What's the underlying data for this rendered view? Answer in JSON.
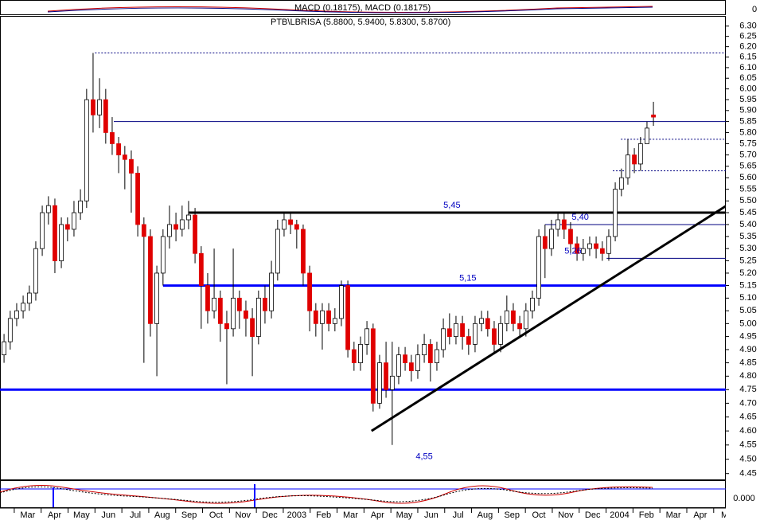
{
  "chart_data": {
    "type": "candlestick",
    "title": "PTB\\LBRISA (5.8800, 5.9400, 5.8300, 5.8700)",
    "indicator_label": "MACD (0.18175), MACD (0.18175)",
    "indicator_zero": "0",
    "lower_label": "0.000",
    "log_scale": true,
    "up_color": "#ffffff",
    "down_color": "#e00000",
    "ylim": [
      4.43,
      6.35
    ],
    "yticks": [
      {
        "value": 6.3,
        "label": "6.30"
      },
      6.25,
      {
        "value": 6.2,
        "label": "6.20"
      },
      6.15,
      {
        "value": 6.1,
        "label": "6.10"
      },
      6.05,
      {
        "value": 6,
        "label": "6.00"
      },
      5.95,
      {
        "value": 5.9,
        "label": "5.90"
      },
      5.85,
      {
        "value": 5.8,
        "label": "5.80"
      },
      5.75,
      {
        "value": 5.7,
        "label": "5.70"
      },
      5.65,
      {
        "value": 5.6,
        "label": "5.60"
      },
      5.55,
      {
        "value": 5.5,
        "label": "5.50"
      },
      5.45,
      {
        "value": 5.4,
        "label": "5.40"
      },
      5.35,
      {
        "value": 5.3,
        "label": "5.30"
      },
      5.25,
      {
        "value": 5.2,
        "label": "5.20"
      },
      5.15,
      {
        "value": 5.1,
        "label": "5.10"
      },
      5.05,
      {
        "value": 5,
        "label": "5.00"
      },
      4.95,
      {
        "value": 4.9,
        "label": "4.90"
      },
      4.85,
      {
        "value": 4.8,
        "label": "4.80"
      },
      4.75,
      {
        "value": 4.7,
        "label": "4.70"
      },
      4.65,
      {
        "value": 4.6,
        "label": "4.60"
      },
      4.55,
      {
        "value": 4.5,
        "label": "4.50"
      },
      4.45
    ],
    "xlim": [
      -0.53,
      26.45
    ],
    "xticks": [
      {
        "value": 0,
        "label": "Mar"
      },
      {
        "value": 1,
        "label": "Apr"
      },
      {
        "value": 2,
        "label": "May"
      },
      {
        "value": 3,
        "label": "Jun"
      },
      {
        "value": 4,
        "label": "Jul"
      },
      {
        "value": 5,
        "label": "Aug"
      },
      {
        "value": 6,
        "label": "Sep"
      },
      {
        "value": 7,
        "label": "Oct"
      },
      {
        "value": 8,
        "label": "Nov"
      },
      {
        "value": 9,
        "label": "Dec"
      },
      {
        "value": 10,
        "label": "2003"
      },
      {
        "value": 11,
        "label": "Feb"
      },
      {
        "value": 12,
        "label": "Mar"
      },
      {
        "value": 13,
        "label": "Apr"
      },
      {
        "value": 14,
        "label": "May"
      },
      {
        "value": 15,
        "label": "Jun"
      },
      {
        "value": 16,
        "label": "Jul"
      },
      {
        "value": 17,
        "label": "Aug"
      },
      {
        "value": 18,
        "label": "Sep"
      },
      {
        "value": 19,
        "label": "Oct"
      },
      {
        "value": 20,
        "label": "Nov"
      },
      {
        "value": 21,
        "label": "Dec"
      },
      {
        "value": 22,
        "label": "2004"
      },
      {
        "value": 23,
        "label": "Feb"
      },
      {
        "value": 24,
        "label": "Mar"
      },
      {
        "value": 25,
        "label": "Apr"
      },
      {
        "value": 26,
        "label": "Ma"
      }
    ],
    "x": [
      -0.38,
      -0.15,
      0.09,
      0.33,
      0.56,
      0.8,
      1.04,
      1.27,
      1.51,
      1.75,
      1.98,
      2.22,
      2.46,
      2.69,
      2.93,
      3.17,
      3.4,
      3.64,
      3.88,
      4.11,
      4.35,
      4.59,
      4.82,
      5.06,
      5.3,
      5.53,
      5.77,
      6.01,
      6.24,
      6.48,
      6.72,
      6.95,
      7.19,
      7.43,
      7.66,
      7.9,
      8.14,
      8.37,
      8.61,
      8.85,
      9.08,
      9.32,
      9.56,
      9.79,
      10.03,
      10.27,
      10.5,
      10.74,
      10.98,
      11.21,
      11.45,
      11.69,
      11.92,
      12.16,
      12.4,
      12.63,
      12.87,
      13.11,
      13.34,
      13.58,
      13.82,
      14.05,
      14.29,
      14.53,
      14.76,
      15,
      15.24,
      15.47,
      15.71,
      15.95,
      16.18,
      16.42,
      16.66,
      16.89,
      17.13,
      17.37,
      17.6,
      17.84,
      18.08,
      18.31,
      18.55,
      18.79,
      19.02,
      19.26,
      19.5,
      19.73,
      19.97,
      20.21,
      20.44,
      20.68,
      20.92,
      21.15,
      21.39,
      21.63,
      21.86,
      22.1,
      22.34,
      22.57,
      22.81,
      23.05,
      23.28,
      23.52,
      23.76
    ],
    "open": [
      4.88,
      4.93,
      5.02,
      5.05,
      5.08,
      5.12,
      5.3,
      5.45,
      5.48,
      5.25,
      5.4,
      5.38,
      5.45,
      5.5,
      5.95,
      5.88,
      5.95,
      5.8,
      5.75,
      5.7,
      5.68,
      5.62,
      5.4,
      5.35,
      5,
      5.2,
      5.35,
      5.4,
      5.38,
      5.42,
      5.44,
      5.28,
      5.15,
      5.05,
      5.1,
      5,
      4.98,
      5.1,
      5.05,
      5.02,
      4.95,
      5.1,
      5.05,
      5.2,
      5.38,
      5.42,
      5.4,
      5.38,
      5.2,
      5.05,
      5,
      5.05,
      5,
      5.02,
      5.15,
      4.9,
      4.85,
      4.92,
      4.98,
      4.7,
      4.85,
      4.75,
      4.8,
      4.88,
      4.85,
      4.82,
      4.88,
      4.92,
      4.85,
      4.9,
      4.98,
      4.95,
      5,
      4.95,
      4.92,
      5,
      5.02,
      4.98,
      4.92,
      5,
      5.05,
      5,
      4.98,
      5.05,
      5.1,
      5.35,
      5.3,
      5.38,
      5.42,
      5.38,
      5.32,
      5.28,
      5.3,
      5.32,
      5.3,
      5.28,
      5.35,
      5.55,
      5.6,
      5.7,
      5.66,
      5.75,
      5.88
    ],
    "high": [
      4.96,
      5.05,
      5.08,
      5.11,
      5.15,
      5.33,
      5.48,
      5.52,
      5.51,
      5.43,
      5.43,
      5.5,
      5.55,
      6,
      6.17,
      6.05,
      6,
      5.87,
      5.78,
      5.74,
      5.72,
      5.65,
      5.43,
      5.38,
      5.23,
      5.38,
      5.48,
      5.45,
      5.48,
      5.5,
      5.47,
      5.31,
      5.2,
      5.3,
      5.13,
      5.05,
      5.3,
      5.13,
      5.09,
      5.06,
      5.13,
      5.15,
      5.25,
      5.42,
      5.45,
      5.45,
      5.42,
      5.4,
      5.23,
      5.08,
      5.08,
      5.08,
      5.06,
      5.17,
      5.17,
      4.93,
      4.95,
      5.01,
      5,
      4.88,
      4.93,
      4.93,
      4.91,
      4.91,
      4.88,
      4.92,
      4.96,
      4.94,
      4.93,
      5.02,
      5.04,
      5.03,
      5.03,
      4.98,
      5.03,
      5.05,
      5.05,
      5.01,
      5.03,
      5.11,
      5.08,
      5.03,
      5.08,
      5.13,
      5.38,
      5.4,
      5.42,
      5.45,
      5.45,
      5.41,
      5.35,
      5.34,
      5.35,
      5.35,
      5.33,
      5.38,
      5.58,
      5.64,
      5.77,
      5.73,
      5.78,
      5.85,
      5.94
    ],
    "low": [
      4.85,
      4.9,
      4.99,
      5.02,
      5.05,
      5.09,
      5.27,
      5.4,
      5.2,
      5.22,
      5.33,
      5.35,
      5.42,
      5.47,
      5.8,
      5.82,
      5.75,
      5.7,
      5.62,
      5.55,
      5.45,
      5.35,
      4.85,
      4.95,
      4.8,
      5.15,
      5.3,
      5.33,
      5.35,
      5.38,
      5.24,
      4.98,
      5,
      5.02,
      4.93,
      4.77,
      4.95,
      4.98,
      4.95,
      4.8,
      4.92,
      5,
      5.02,
      5.17,
      5.35,
      5.36,
      5.3,
      5.15,
      4.97,
      4.95,
      4.9,
      4.97,
      4.97,
      4.99,
      4.87,
      4.82,
      4.82,
      4.88,
      4.67,
      4.68,
      4.72,
      4.55,
      4.77,
      4.82,
      4.78,
      4.79,
      4.85,
      4.78,
      4.82,
      4.87,
      4.92,
      4.92,
      4.9,
      4.88,
      4.89,
      4.97,
      4.95,
      4.89,
      4.89,
      4.97,
      4.97,
      4.95,
      4.95,
      5.02,
      5.07,
      5.18,
      5.27,
      5.35,
      5.34,
      5.28,
      5.25,
      5.25,
      5.27,
      5.26,
      5.25,
      5.25,
      5.33,
      5.52,
      5.57,
      5.62,
      5.63,
      5.75,
      5.83
    ],
    "close": [
      4.93,
      5.02,
      5.05,
      5.08,
      5.12,
      5.3,
      5.45,
      5.48,
      5.25,
      5.4,
      5.38,
      5.45,
      5.5,
      5.95,
      5.88,
      5.95,
      5.8,
      5.75,
      5.7,
      5.68,
      5.62,
      5.4,
      5.35,
      5,
      5.2,
      5.35,
      5.4,
      5.38,
      5.42,
      5.44,
      5.28,
      5.15,
      5.05,
      5.1,
      5,
      4.98,
      5.1,
      5.05,
      5.02,
      4.95,
      5.1,
      5.05,
      5.2,
      5.38,
      5.42,
      5.4,
      5.38,
      5.2,
      5.05,
      5,
      5.05,
      5,
      5.02,
      5.15,
      4.9,
      4.85,
      4.92,
      4.98,
      4.7,
      4.85,
      4.75,
      4.8,
      4.88,
      4.85,
      4.82,
      4.88,
      4.92,
      4.85,
      4.9,
      4.98,
      4.95,
      5,
      4.95,
      4.92,
      5,
      5.02,
      4.98,
      4.92,
      5,
      5.05,
      5,
      4.98,
      5.05,
      5.1,
      5.35,
      5.3,
      5.38,
      5.42,
      5.38,
      5.32,
      5.28,
      5.3,
      5.32,
      5.3,
      5.28,
      5.35,
      5.55,
      5.6,
      5.7,
      5.66,
      5.75,
      5.82,
      5.87
    ],
    "levels": [
      {
        "value": 6.17,
        "from": 3.0,
        "color": "#000080",
        "width": 1,
        "dotted": true
      },
      {
        "value": 5.85,
        "from": 3.7,
        "color": "#000080",
        "width": 1,
        "dotted": false
      },
      {
        "value": 5.77,
        "from": 22.55,
        "color": "#000080",
        "width": 1,
        "dotted": true
      },
      {
        "value": 5.63,
        "from": 22.25,
        "color": "#000080",
        "width": 1,
        "dotted": true
      },
      {
        "value": 5.45,
        "from": 6.48,
        "color": "#000000",
        "width": 3,
        "dotted": false
      },
      {
        "value": 5.4,
        "from": 19.73,
        "color": "#000080",
        "width": 1,
        "dotted": false
      },
      {
        "value": 5.26,
        "from": 22.02,
        "color": "#000080",
        "width": 1,
        "dotted": false
      },
      {
        "value": 5.15,
        "from": 5.53,
        "color": "#0000ff",
        "width": 3,
        "dotted": false
      },
      {
        "value": 4.75,
        "from": -0.53,
        "color": "#0000ff",
        "width": 3,
        "dotted": false
      }
    ],
    "trendline": {
      "x": [
        13.28,
        26.45
      ],
      "y": [
        4.6,
        5.478
      ],
      "color": "#000000"
    },
    "annotations": [
      {
        "text": "5,45",
        "x": 16.27,
        "value": 5.45
      },
      {
        "text": "5,15",
        "x": 16.86,
        "value": 5.15
      },
      {
        "text": "5,40",
        "x": 21.04,
        "value": 5.4
      },
      {
        "text": "5,26",
        "x": 20.77,
        "value": 5.26
      },
      {
        "text": "4,55",
        "x": 15.24,
        "value": 4.55
      }
    ]
  }
}
